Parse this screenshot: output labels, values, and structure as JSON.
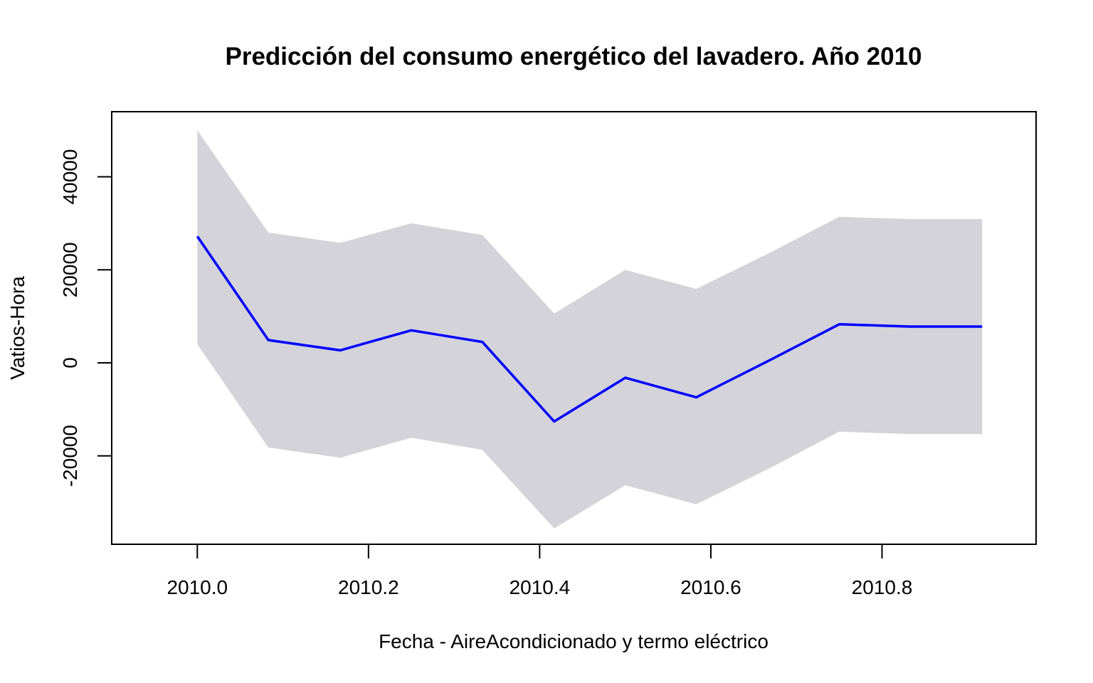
{
  "chart_data": {
    "type": "area",
    "title": "Predicción del consumo energético del lavadero. Año 2010",
    "xlabel": "Fecha - AireAcondicionado y termo eléctrico",
    "ylabel": "Vatios-Hora",
    "xlim": [
      2009.9,
      2010.98
    ],
    "ylim": [
      -39000,
      54000
    ],
    "x_ticks": [
      {
        "value": 2010.0,
        "label": "2010.0"
      },
      {
        "value": 2010.2,
        "label": "2010.2"
      },
      {
        "value": 2010.4,
        "label": "2010.4"
      },
      {
        "value": 2010.6,
        "label": "2010.6"
      },
      {
        "value": 2010.8,
        "label": "2010.8"
      }
    ],
    "y_ticks": [
      {
        "value": -20000,
        "label": "-20000"
      },
      {
        "value": 0,
        "label": "0"
      },
      {
        "value": 20000,
        "label": "20000"
      },
      {
        "value": 40000,
        "label": "40000"
      }
    ],
    "x": [
      2010.0,
      2010.083,
      2010.167,
      2010.25,
      2010.333,
      2010.417,
      2010.5,
      2010.583,
      2010.667,
      2010.75,
      2010.833,
      2010.917
    ],
    "series": [
      {
        "values": [
          27200,
          4900,
          2700,
          7000,
          4500,
          -12600,
          -3200,
          -7400,
          400,
          8300,
          7800,
          7800
        ],
        "color": "#0000ff"
      }
    ],
    "band": {
      "upper": [
        50000,
        28000,
        25800,
        30000,
        27500,
        10600,
        20000,
        15900,
        23500,
        31400,
        30900,
        30900
      ],
      "lower": [
        4000,
        -18200,
        -20400,
        -16100,
        -18700,
        -35600,
        -26300,
        -30400,
        -22800,
        -14800,
        -15300,
        -15300
      ],
      "color": "#d3d3d9"
    },
    "grid": false,
    "legend": "none"
  }
}
